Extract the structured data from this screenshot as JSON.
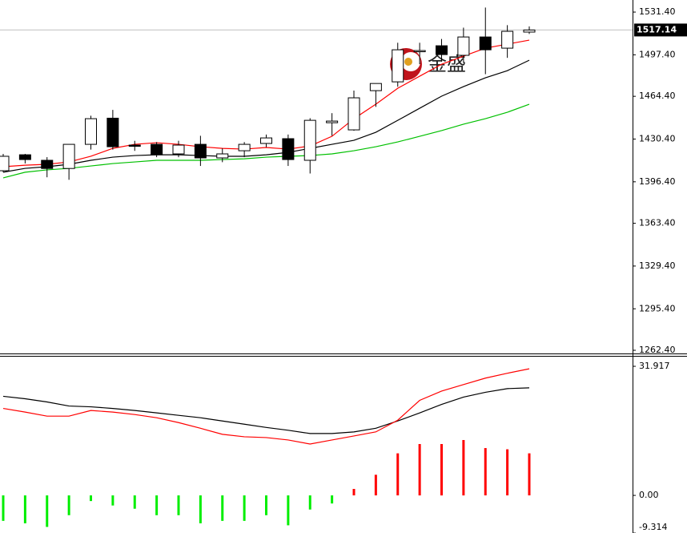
{
  "chart_data": [
    {
      "type": "candlestick",
      "watermark": "金盛",
      "open": [
        1405.2,
        1417.9,
        1413.5,
        1407.0,
        1426.2,
        1447.0,
        1425.6,
        1426.2,
        1418.6,
        1426.2,
        1415.4,
        1421.1,
        1426.9,
        1430.7,
        1413.5,
        1443.4,
        1437.7,
        1468.9,
        1475.9,
        1500.8,
        1504.6,
        1497.0,
        1511.6,
        1502.7,
        1515.5
      ],
      "high": [
        1418.6,
        1418.6,
        1416.0,
        1426.2,
        1449.0,
        1453.6,
        1429.0,
        1428.0,
        1429.0,
        1433.0,
        1423.0,
        1428.0,
        1434.0,
        1434.0,
        1447.0,
        1451.0,
        1469.0,
        1474.6,
        1507.0,
        1507.0,
        1510.0,
        1519.0,
        1535.0,
        1521.0,
        1520.0
      ],
      "low": [
        1404.0,
        1411.0,
        1400.0,
        1398.0,
        1422.0,
        1422.0,
        1421.0,
        1416.0,
        1416.0,
        1409.0,
        1412.0,
        1416.0,
        1424.0,
        1409.0,
        1403.0,
        1433.0,
        1437.0,
        1456.0,
        1472.0,
        1490.0,
        1492.0,
        1491.0,
        1482.0,
        1495.0,
        1514.0
      ],
      "close": [
        1416.7,
        1414.1,
        1407.0,
        1426.2,
        1446.6,
        1424.3,
        1425.0,
        1417.9,
        1425.6,
        1415.4,
        1418.6,
        1426.2,
        1431.3,
        1414.1,
        1445.3,
        1444.7,
        1463.2,
        1474.6,
        1501.4,
        1500.8,
        1497.6,
        1511.6,
        1501.4,
        1516.1,
        1517.14
      ],
      "up_color": "#ffffff",
      "down_color": "#000000",
      "series": [
        {
          "color": "#ff0000",
          "values": [
            1408.4,
            1409.6,
            1410.3,
            1412.2,
            1416.7,
            1423.0,
            1426.2,
            1427.5,
            1426.2,
            1424.3,
            1423.0,
            1422.4,
            1423.7,
            1422.4,
            1424.9,
            1432.6,
            1446.6,
            1458.1,
            1470.8,
            1480.4,
            1489.9,
            1496.3,
            1502.7,
            1505.9,
            1509.1
          ]
        },
        {
          "color": "#000000",
          "values": [
            1404.0,
            1407.1,
            1408.4,
            1410.3,
            1413.5,
            1416.0,
            1417.3,
            1417.9,
            1417.9,
            1417.3,
            1416.7,
            1416.7,
            1417.9,
            1419.8,
            1423.0,
            1426.2,
            1429.4,
            1435.8,
            1445.3,
            1454.9,
            1464.5,
            1472.1,
            1479.1,
            1484.8,
            1493.1
          ]
        },
        {
          "color": "#00c000",
          "values": [
            1399.5,
            1404.0,
            1405.9,
            1407.1,
            1409.0,
            1410.9,
            1412.2,
            1413.5,
            1413.5,
            1413.5,
            1414.1,
            1414.7,
            1416.0,
            1416.7,
            1417.3,
            1418.6,
            1421.1,
            1424.3,
            1428.1,
            1432.6,
            1437.1,
            1442.2,
            1446.6,
            1451.7,
            1458.1
          ]
        }
      ],
      "current_price": 1517.14,
      "ylim": [
        1260.5,
        1541.0
      ],
      "yticks": [
        {
          "value": 1531.4,
          "label": "1531.40"
        },
        {
          "value": 1497.4,
          "label": "1497.40"
        },
        {
          "value": 1464.4,
          "label": "1464.40"
        },
        {
          "value": 1430.4,
          "label": "1430.40"
        },
        {
          "value": 1396.4,
          "label": "1396.40"
        },
        {
          "value": 1363.4,
          "label": "1363.40"
        },
        {
          "value": 1329.4,
          "label": "1329.40"
        },
        {
          "value": 1295.4,
          "label": "1295.40"
        },
        {
          "value": 1262.4,
          "label": "1262.40"
        }
      ]
    },
    {
      "type": "macd",
      "values": [
        -6.3,
        -6.9,
        -7.8,
        -4.9,
        -1.4,
        -2.5,
        -3.3,
        -4.9,
        -4.9,
        -6.9,
        -6.3,
        -6.3,
        -4.9,
        -7.4,
        -3.5,
        -2.0,
        1.6,
        5.1,
        10.4,
        12.7,
        12.7,
        13.7,
        11.7,
        11.4,
        10.4
      ],
      "positive_color": "#ff0000",
      "negative_color": "#00ee00",
      "series": [
        {
          "color": "#000000",
          "values": [
            24.5,
            23.9,
            23.1,
            22.1,
            21.9,
            21.5,
            21.0,
            20.4,
            19.8,
            19.2,
            18.4,
            17.6,
            16.8,
            16.1,
            15.3,
            15.3,
            15.7,
            16.6,
            18.4,
            20.4,
            22.5,
            24.3,
            25.5,
            26.4,
            26.6
          ]
        },
        {
          "color": "#ff0000",
          "values": [
            21.5,
            20.6,
            19.6,
            19.6,
            21.0,
            20.6,
            20.0,
            19.2,
            18.0,
            16.6,
            15.1,
            14.5,
            14.3,
            13.7,
            12.7,
            13.7,
            14.7,
            15.7,
            18.6,
            23.5,
            25.8,
            27.4,
            29.0,
            30.2,
            31.3
          ]
        }
      ],
      "ylim": [
        -9.3,
        34.5
      ],
      "yticks": [
        31.917,
        {
          "value": 0,
          "label": "0.00"
        },
        -9.314
      ]
    }
  ]
}
